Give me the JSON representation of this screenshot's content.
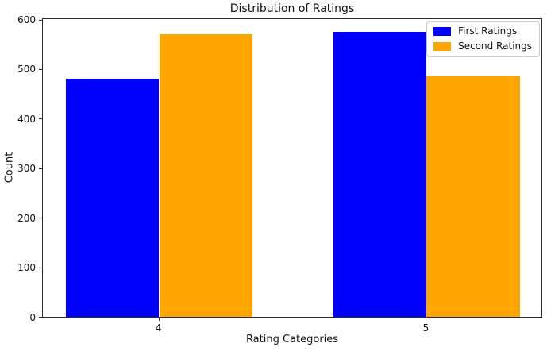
{
  "chart_data": {
    "type": "bar",
    "title": "Distribution of Ratings",
    "xlabel": "Rating Categories",
    "ylabel": "Count",
    "categories": [
      "4",
      "5"
    ],
    "series": [
      {
        "name": "First Ratings",
        "color": "#0000ff",
        "values": [
          480,
          575
        ]
      },
      {
        "name": "Second Ratings",
        "color": "#ffa500",
        "values": [
          570,
          485
        ]
      }
    ],
    "yticks": [
      0,
      100,
      200,
      300,
      400,
      500,
      600
    ],
    "ylim": [
      0,
      604
    ],
    "xlim": [
      -0.435,
      1.435
    ],
    "x_positions": [
      0,
      1
    ],
    "bar_width": 0.35,
    "grid": false,
    "legend_position": "upper right",
    "background": "#ffffff",
    "spine_color": "#2b2b2b"
  }
}
